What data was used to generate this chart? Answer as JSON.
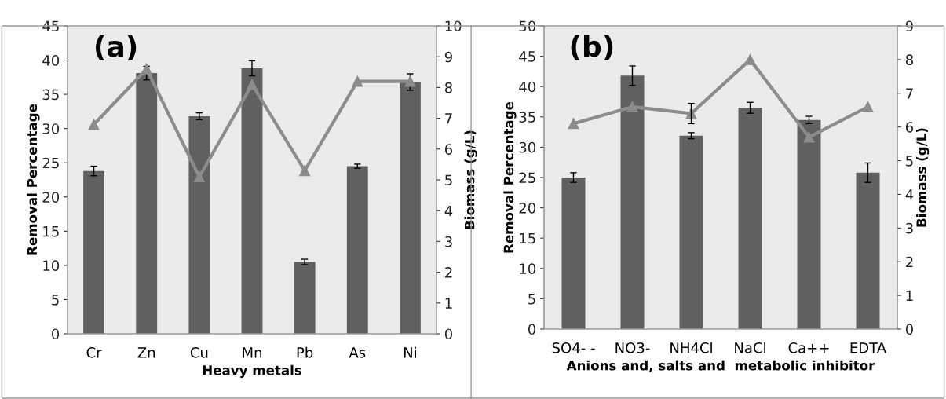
{
  "chart_data": [
    {
      "type": "bar",
      "annotations": [
        "(a)"
      ],
      "xlabel": "Heavy metals",
      "ylabel": "Removal Percentage",
      "y2label": "Biomass (g/L)",
      "categories": [
        "Cr",
        "Zn",
        "Cu",
        "Mn",
        "Pb",
        "As",
        "Ni"
      ],
      "series": [
        {
          "color": "#606060",
          "values": [
            23.8,
            38.1,
            31.8,
            38.8,
            10.5,
            24.5,
            36.8
          ],
          "errors": [
            0.7,
            1.0,
            0.5,
            1.1,
            0.4,
            0.3,
            1.2
          ]
        },
        {
          "type": "line",
          "axis": "y2",
          "color": "#8c8c8c",
          "marker": "triangle",
          "values": [
            6.8,
            8.6,
            5.1,
            8.1,
            5.3,
            8.2,
            8.2
          ]
        }
      ],
      "ylim": [
        0,
        45
      ],
      "yticks": [
        0,
        5,
        10,
        15,
        20,
        25,
        30,
        35,
        40,
        45
      ],
      "y2lim": [
        0,
        10
      ],
      "y2ticks": [
        0,
        1,
        2,
        3,
        4,
        5,
        6,
        7,
        8,
        9,
        10
      ],
      "grid": false,
      "legend": false
    },
    {
      "type": "bar",
      "annotations": [
        "(b)"
      ],
      "xlabel": "Anions and, salts and  metabolic inhibitor",
      "ylabel": "Removal Percentage",
      "y2label": "Biomass (g/L)",
      "categories": [
        "SO4- -",
        "NO3-",
        "NH4Cl",
        "NaCl",
        "Ca++",
        "EDTA"
      ],
      "series": [
        {
          "color": "#606060",
          "values": [
            25.0,
            41.8,
            31.9,
            36.5,
            34.5,
            25.8
          ],
          "errors": [
            0.8,
            1.6,
            0.5,
            0.9,
            0.6,
            1.6
          ]
        },
        {
          "type": "line",
          "axis": "y2",
          "color": "#8c8c8c",
          "marker": "triangle",
          "values": [
            6.1,
            6.6,
            6.4,
            8.0,
            5.7,
            6.6
          ],
          "errors": [
            null,
            null,
            0.3,
            null,
            null,
            null
          ]
        }
      ],
      "ylim": [
        0,
        50
      ],
      "yticks": [
        0,
        5,
        10,
        15,
        20,
        25,
        30,
        35,
        40,
        45,
        50
      ],
      "y2lim": [
        0,
        9
      ],
      "y2ticks": [
        0,
        1,
        2,
        3,
        4,
        5,
        6,
        7,
        8,
        9
      ],
      "grid": false,
      "legend": false
    }
  ]
}
